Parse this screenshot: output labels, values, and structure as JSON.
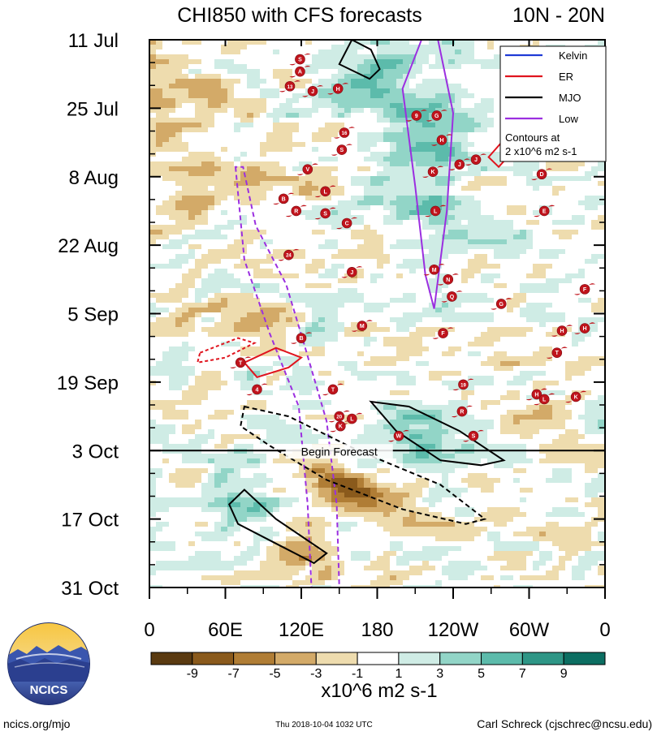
{
  "chart_data": {
    "type": "heatmap",
    "title": "CHI850 with CFS forecasts",
    "subtitle": "10N - 20N",
    "x_ticks": [
      "0",
      "60E",
      "120E",
      "180",
      "120W",
      "60W",
      "0"
    ],
    "x_tick_lon": [
      0,
      60,
      120,
      180,
      240,
      300,
      360
    ],
    "y_ticks": [
      "11 Jul",
      "25 Jul",
      "8 Aug",
      "22 Aug",
      "5 Sep",
      "19 Sep",
      "3 Oct",
      "17 Oct",
      "31 Oct"
    ],
    "y_range_days": [
      0,
      112
    ],
    "forecast_start_day": 84,
    "forecast_label": "Begin Forecast",
    "colorbar": {
      "levels": [
        "-9",
        "-7",
        "-5",
        "-3",
        "-1",
        "1",
        "3",
        "5",
        "7",
        "9"
      ],
      "colors": [
        "#5a3a10",
        "#8a5a1c",
        "#b07d35",
        "#d3aa68",
        "#eedcae",
        "#f2e9cf",
        "#ffffff",
        "#cfece5",
        "#92d5c7",
        "#5cbbab",
        "#2e9686",
        "#0c6e62"
      ],
      "units": "x10^6 m2 s-1"
    },
    "legend": {
      "items": [
        {
          "name": "Kelvin",
          "color": "#1f3bd6"
        },
        {
          "name": "ER",
          "color": "#e0141e"
        },
        {
          "name": "MJO",
          "color": "#000000"
        },
        {
          "name": "Low",
          "color": "#9b2fe0"
        }
      ],
      "note_line1": "Contours at",
      "note_line2": "2 x10^6 m2 s-1"
    },
    "storms": [
      {
        "label": "S",
        "lon": 119,
        "day": 4
      },
      {
        "label": "A",
        "lon": 119,
        "day": 6.5
      },
      {
        "label": "13",
        "lon": 111,
        "day": 9.5
      },
      {
        "label": "J",
        "lon": 129,
        "day": 10.5
      },
      {
        "label": "H",
        "lon": 149,
        "day": 10
      },
      {
        "label": "9",
        "lon": 211,
        "day": 15.5
      },
      {
        "label": "G",
        "lon": 227,
        "day": 15.5
      },
      {
        "label": "16",
        "lon": 154,
        "day": 19
      },
      {
        "label": "H",
        "lon": 231,
        "day": 20.5
      },
      {
        "label": "S",
        "lon": 152,
        "day": 22.5
      },
      {
        "label": "J",
        "lon": 245,
        "day": 25.5
      },
      {
        "label": "J",
        "lon": 258,
        "day": 24.5
      },
      {
        "label": "V",
        "lon": 125,
        "day": 26.5
      },
      {
        "label": "K",
        "lon": 224,
        "day": 27
      },
      {
        "label": "D",
        "lon": 310,
        "day": 27.5
      },
      {
        "label": "L",
        "lon": 139,
        "day": 31
      },
      {
        "label": "B",
        "lon": 106,
        "day": 32.5
      },
      {
        "label": "R",
        "lon": 116,
        "day": 35
      },
      {
        "label": "S",
        "lon": 139,
        "day": 35.5
      },
      {
        "label": "L",
        "lon": 226,
        "day": 35
      },
      {
        "label": "E",
        "lon": 312,
        "day": 35
      },
      {
        "label": "C",
        "lon": 156,
        "day": 37.5
      },
      {
        "label": "24",
        "lon": 110,
        "day": 44
      },
      {
        "label": "M",
        "lon": 225,
        "day": 47
      },
      {
        "label": "J",
        "lon": 160,
        "day": 47.5
      },
      {
        "label": "N",
        "lon": 236,
        "day": 49
      },
      {
        "label": "F",
        "lon": 344,
        "day": 51
      },
      {
        "label": "Q",
        "lon": 239,
        "day": 52.5
      },
      {
        "label": "G",
        "lon": 278,
        "day": 54
      },
      {
        "label": "M",
        "lon": 168,
        "day": 58.5
      },
      {
        "label": "F",
        "lon": 232,
        "day": 60
      },
      {
        "label": "H",
        "lon": 326,
        "day": 59.5
      },
      {
        "label": "H",
        "lon": 344,
        "day": 59
      },
      {
        "label": "B",
        "lon": 120,
        "day": 61
      },
      {
        "label": "T",
        "lon": 322,
        "day": 64
      },
      {
        "label": "T",
        "lon": 72,
        "day": 66
      },
      {
        "label": "4",
        "lon": 85,
        "day": 71.5
      },
      {
        "label": "T",
        "lon": 145,
        "day": 71.5
      },
      {
        "label": "19",
        "lon": 248,
        "day": 70.5
      },
      {
        "label": "H",
        "lon": 306,
        "day": 72.5
      },
      {
        "label": "L",
        "lon": 312,
        "day": 73.5
      },
      {
        "label": "K",
        "lon": 337,
        "day": 73
      },
      {
        "label": "R",
        "lon": 247,
        "day": 76
      },
      {
        "label": "20",
        "lon": 150,
        "day": 77
      },
      {
        "label": "L",
        "lon": 160,
        "day": 77.5
      },
      {
        "label": "K",
        "lon": 151,
        "day": 79
      },
      {
        "label": "W",
        "lon": 197,
        "day": 81
      },
      {
        "label": "S",
        "lon": 256,
        "day": 81
      }
    ]
  },
  "logo": {
    "text": "NCICS"
  },
  "footer": {
    "left": "ncics.org/mjo",
    "center": "Thu 2018-10-04 1032 UTC",
    "right": "Carl Schreck (cjschrec@ncsu.edu)"
  }
}
